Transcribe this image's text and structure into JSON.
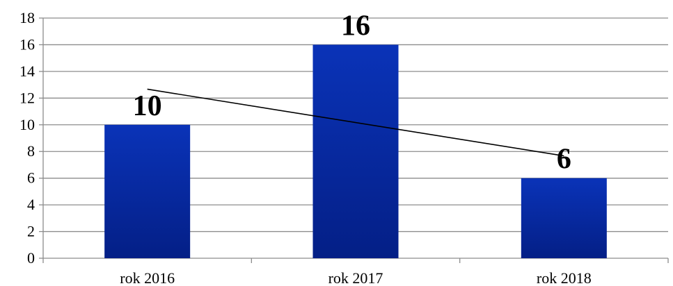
{
  "chart_data": {
    "type": "bar",
    "title": "",
    "xlabel": "",
    "ylabel": "",
    "categories": [
      "rok 2016",
      "rok 2017",
      "rok 2018"
    ],
    "values": [
      10,
      16,
      6
    ],
    "data_labels": [
      "10",
      "16",
      "6"
    ],
    "ylim": [
      0,
      18
    ],
    "y_ticks": [
      "0",
      "2",
      "4",
      "6",
      "8",
      "10",
      "12",
      "14",
      "16",
      "18"
    ],
    "grid": true,
    "legend": "none",
    "trendline": {
      "type": "linear",
      "start_value": 12.67,
      "end_value": 7.67
    },
    "colors": {
      "bar_top": "#0a33b8",
      "bar_bottom": "#041f86",
      "gridline": "#8c8c8c",
      "trendline": "#000000"
    }
  }
}
